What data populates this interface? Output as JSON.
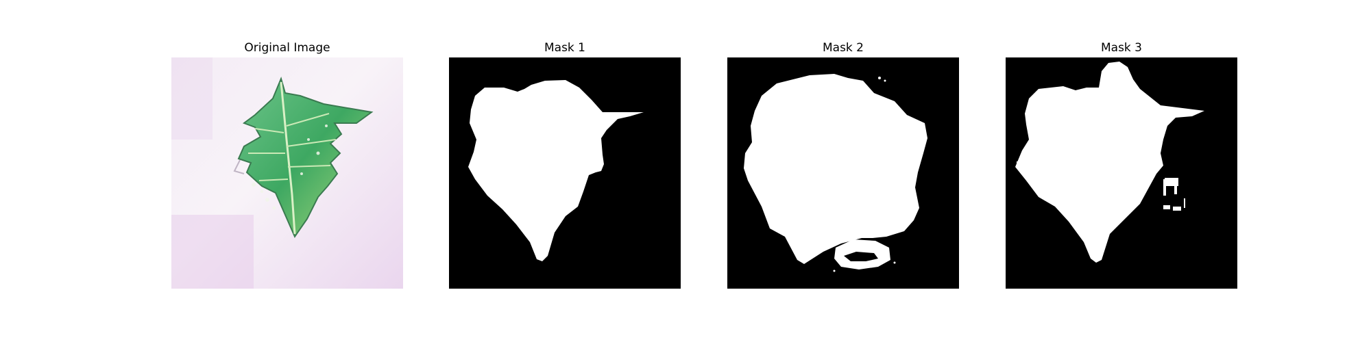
{
  "panels": [
    {
      "title": "Original Image"
    },
    {
      "title": "Mask 1"
    },
    {
      "title": "Mask 2"
    },
    {
      "title": "Mask 3"
    }
  ],
  "colors": {
    "mask_background": "#000000",
    "mask_foreground": "#ffffff",
    "leaf_green": "#4fb36b",
    "leaf_light": "#b6e08a",
    "surface_tint": "#e9d6ec"
  }
}
